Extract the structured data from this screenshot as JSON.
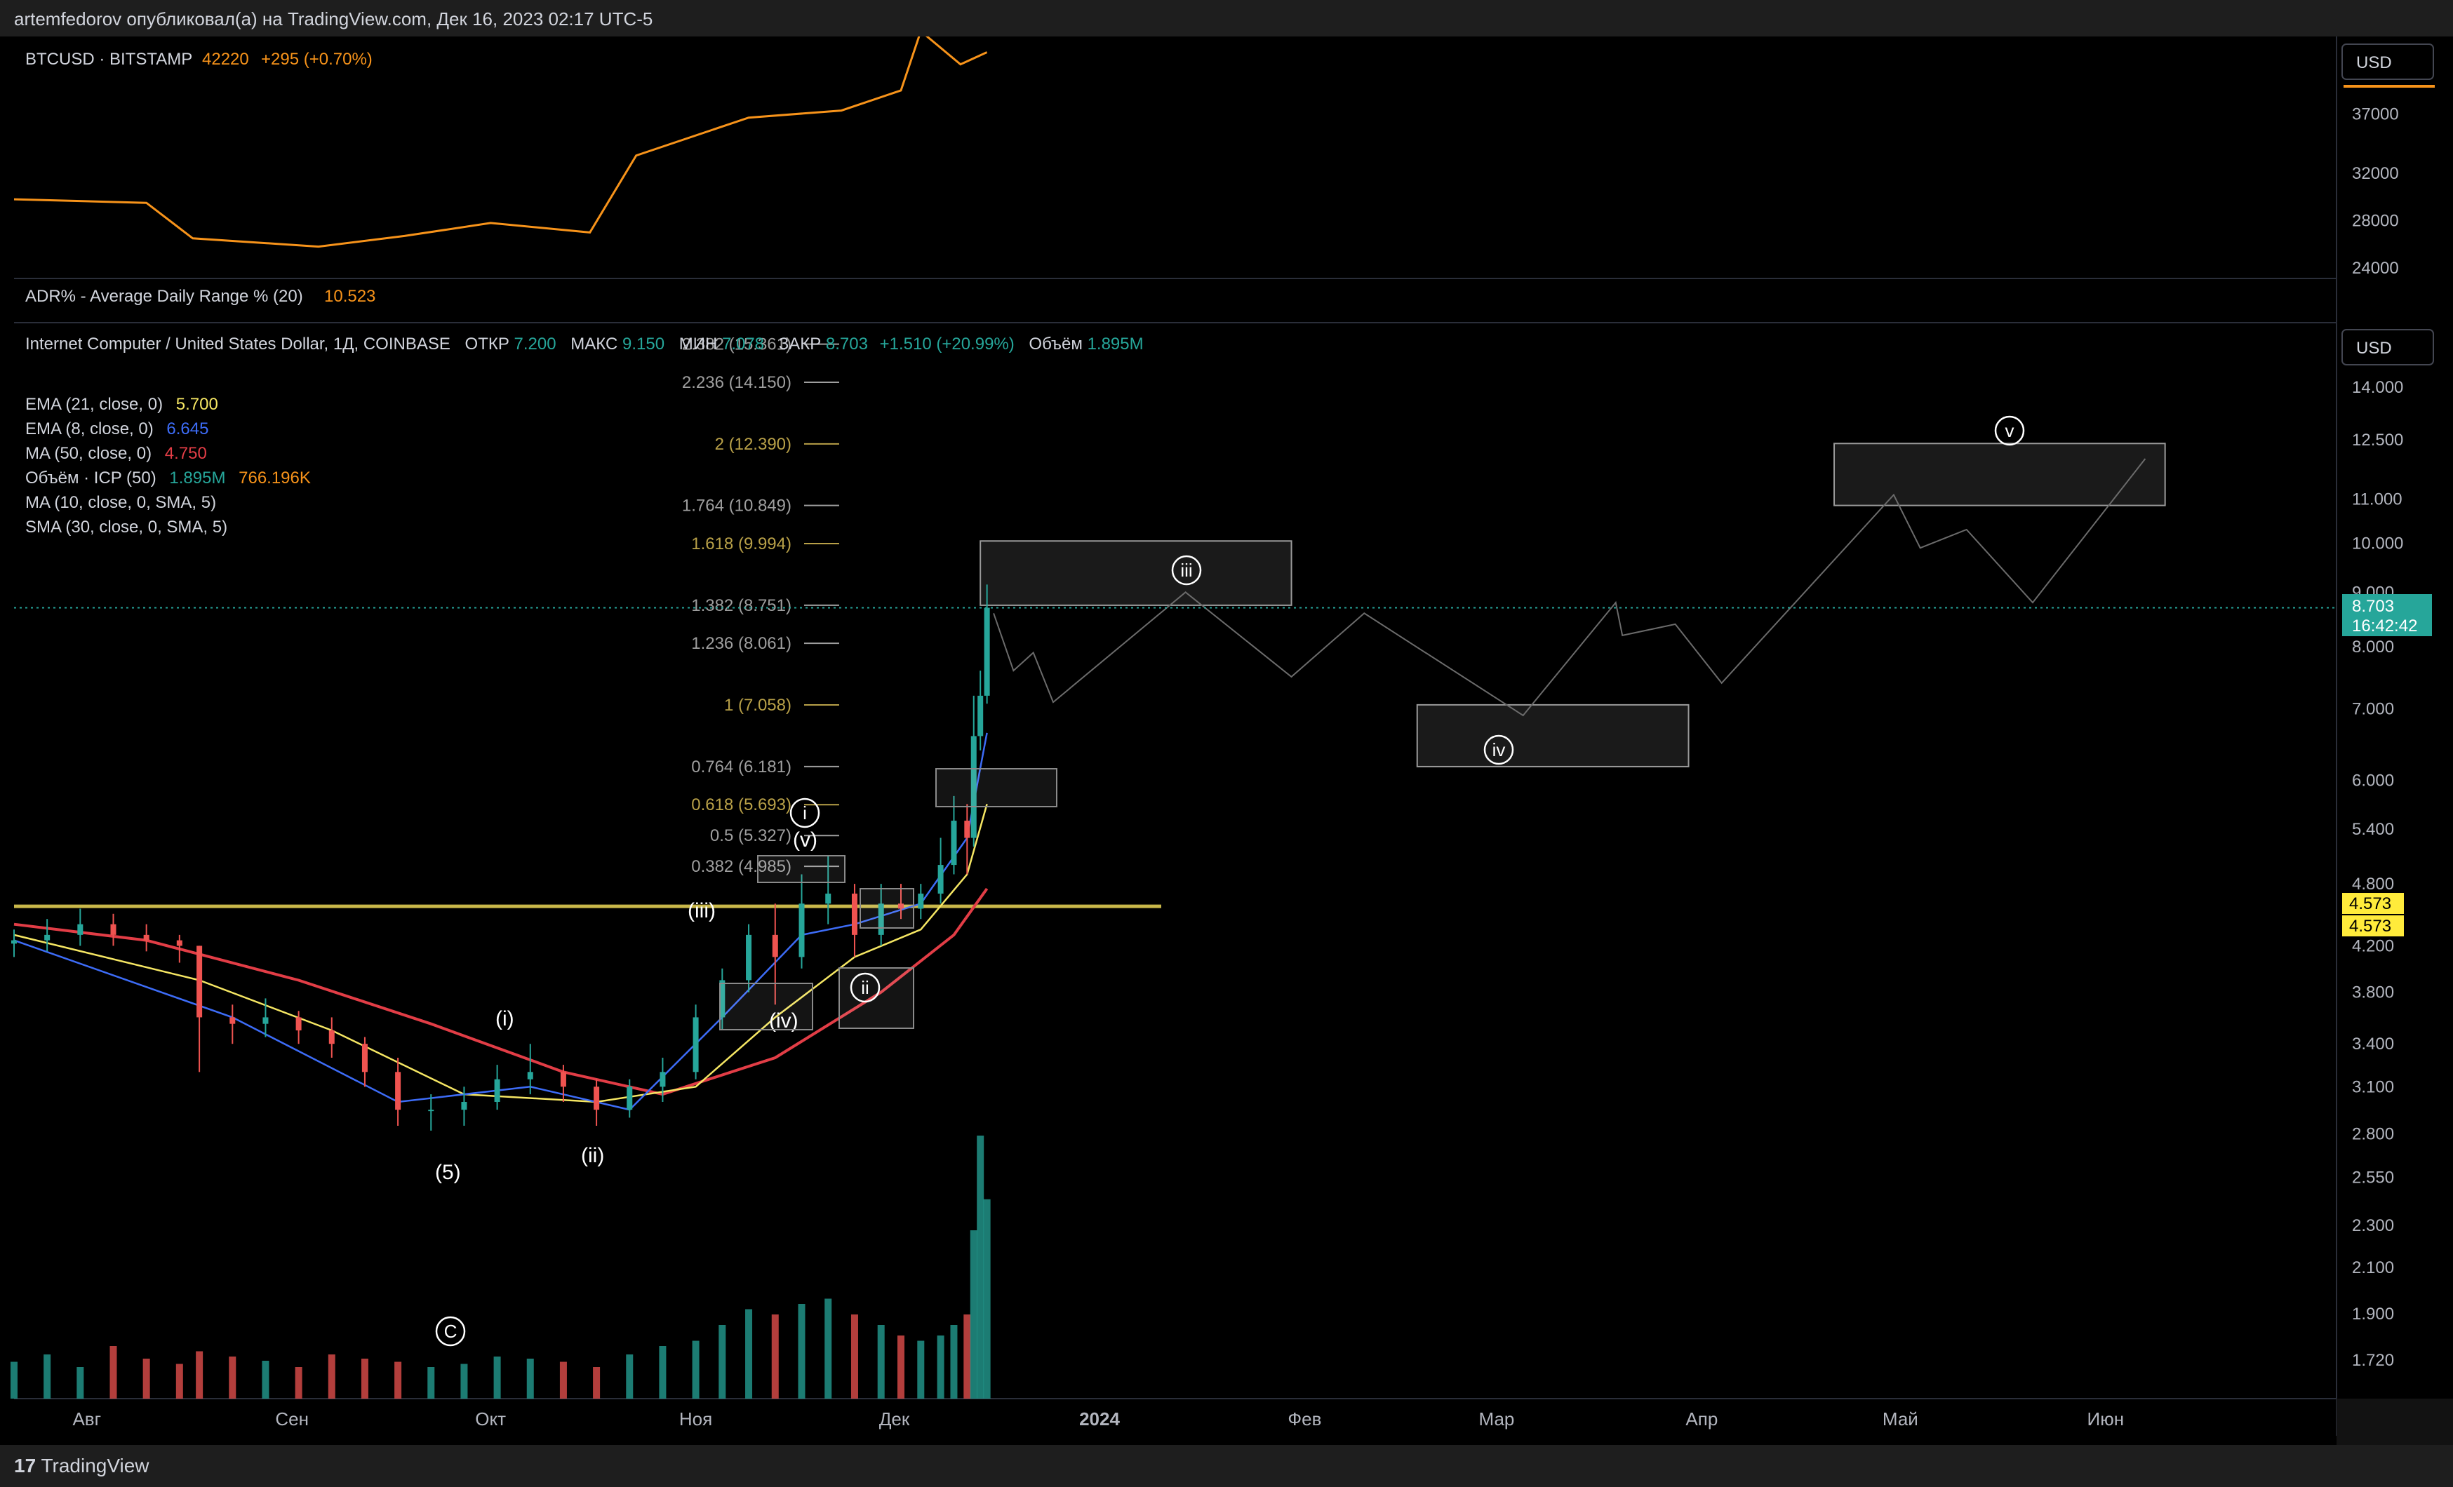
{
  "header": {
    "published": "artemfedorov опубликовал(а) на TradingView.com, Дек 16, 2023 02:17 UTC-5"
  },
  "footer": {
    "brand": "TradingView"
  },
  "colors": {
    "btc_line": "#f7931a",
    "ema21": "#f5e663",
    "ema8": "#3d6cf7",
    "ma50": "#e23d46",
    "vol_up": "#26a69a",
    "vol_down": "#ef5350",
    "fib": "#9e9e9e",
    "fib_gold": "#b8a048",
    "support": "#c9b84a",
    "up_tag": "#26a69a",
    "level_tag": "#ffeb3b"
  },
  "btc_pane": {
    "symbol": "BTCUSD · BITSTAMP",
    "price": "42220",
    "change": "+295 (+0.70%)",
    "currency": "USD",
    "ticks": [
      "37000",
      "32000",
      "28000",
      "24000"
    ]
  },
  "adr_pane": {
    "label": "ADR% - Average Daily Range % (20)",
    "value": "10.523"
  },
  "main_legend": {
    "title": "Internet Computer / United States Dollar, 1Д, COINBASE",
    "o_label": "ОТКР",
    "o": "7.200",
    "h_label": "МАКС",
    "h": "9.150",
    "l_label": "МИН",
    "l": "7.078",
    "c_label": "ЗАКР",
    "c": "8.703",
    "chg": "+1.510 (+20.99%)",
    "v_label": "Объём",
    "v": "1.895M",
    "indicators": [
      {
        "name": "EMA (21, close, 0)",
        "value": "5.700"
      },
      {
        "name": "EMA (8, close, 0)",
        "value": "6.645"
      },
      {
        "name": "MA (50, close, 0)",
        "value": "4.750"
      },
      {
        "name": "Объём · ICP (50)",
        "value": "1.895M",
        "value2": "766.196K"
      },
      {
        "name": "MA (10, close, 0, SMA, 5)",
        "value": ""
      },
      {
        "name": "SMA (30, close, 0, SMA, 5)",
        "value": ""
      }
    ],
    "currency": "USD"
  },
  "price_axis": {
    "ticks": [
      "14.000",
      "12.500",
      "11.000",
      "10.000",
      "9.000",
      "8.000",
      "7.000",
      "6.000",
      "5.400",
      "4.800",
      "4.200",
      "3.800",
      "3.400",
      "3.100",
      "2.800",
      "2.550",
      "2.300",
      "2.100",
      "1.900",
      "1.720"
    ],
    "last_price": "8.703",
    "countdown": "16:42:42",
    "level_a": "4.573",
    "level_b": "4.573"
  },
  "fib_levels": [
    {
      "label": "2.382 (15.361)",
      "price": 15.361
    },
    {
      "label": "2.236 (14.150)",
      "price": 14.15
    },
    {
      "label": "2 (12.390)",
      "price": 12.39
    },
    {
      "label": "1.764 (10.849)",
      "price": 10.849
    },
    {
      "label": "1.618 (9.994)",
      "price": 9.994
    },
    {
      "label": "1.382 (8.751)",
      "price": 8.751
    },
    {
      "label": "1.236 (8.061)",
      "price": 8.061
    },
    {
      "label": "1 (7.058)",
      "price": 7.058
    },
    {
      "label": "0.764 (6.181)",
      "price": 6.181
    },
    {
      "label": "0.618 (5.693)",
      "price": 5.693
    },
    {
      "label": "0.5 (5.327)",
      "price": 5.327
    },
    {
      "label": "0.382 (4.985)",
      "price": 4.985
    }
  ],
  "time_axis": {
    "labels": [
      {
        "text": "Авг",
        "bold": false
      },
      {
        "text": "Сен",
        "bold": false
      },
      {
        "text": "Окт",
        "bold": false
      },
      {
        "text": "Ноя",
        "bold": false
      },
      {
        "text": "Дек",
        "bold": false
      },
      {
        "text": "2024",
        "bold": true
      },
      {
        "text": "Фев",
        "bold": false
      },
      {
        "text": "Мар",
        "bold": false
      },
      {
        "text": "Апр",
        "bold": false
      },
      {
        "text": "Май",
        "bold": false
      },
      {
        "text": "Июн",
        "bold": false
      }
    ]
  },
  "wave_labels": [
    "(5)",
    "(i)",
    "(ii)",
    "(iii)",
    "(iv)",
    "(v)",
    "i",
    "ii",
    "iii",
    "iv",
    "v",
    "C"
  ],
  "chart_data": {
    "type": "candlestick",
    "symbol": "ICPUSD",
    "exchange": "COINBASE",
    "timeframe": "1D",
    "x_range": [
      "2023-07-21",
      "2024-06-20"
    ],
    "y_scale": "log",
    "last": {
      "open": 7.2,
      "high": 9.15,
      "low": 7.078,
      "close": 8.703
    },
    "candles": [
      {
        "date": "2023-07-21",
        "open": 4.22,
        "high": 4.35,
        "low": 4.1,
        "close": 4.25
      },
      {
        "date": "2023-07-26",
        "open": 4.25,
        "high": 4.45,
        "low": 4.15,
        "close": 4.3
      },
      {
        "date": "2023-07-31",
        "open": 4.3,
        "high": 4.55,
        "low": 4.2,
        "close": 4.4
      },
      {
        "date": "2023-08-05",
        "open": 4.4,
        "high": 4.5,
        "low": 4.2,
        "close": 4.3
      },
      {
        "date": "2023-08-10",
        "open": 4.3,
        "high": 4.4,
        "low": 4.15,
        "close": 4.25
      },
      {
        "date": "2023-08-15",
        "open": 4.25,
        "high": 4.3,
        "low": 4.05,
        "close": 4.2
      },
      {
        "date": "2023-08-18",
        "open": 4.2,
        "high": 4.2,
        "low": 3.2,
        "close": 3.6
      },
      {
        "date": "2023-08-23",
        "open": 3.6,
        "high": 3.7,
        "low": 3.4,
        "close": 3.55
      },
      {
        "date": "2023-08-28",
        "open": 3.55,
        "high": 3.75,
        "low": 3.45,
        "close": 3.6
      },
      {
        "date": "2023-09-02",
        "open": 3.6,
        "high": 3.65,
        "low": 3.4,
        "close": 3.5
      },
      {
        "date": "2023-09-07",
        "open": 3.5,
        "high": 3.6,
        "low": 3.3,
        "close": 3.4
      },
      {
        "date": "2023-09-12",
        "open": 3.4,
        "high": 3.45,
        "low": 3.1,
        "close": 3.2
      },
      {
        "date": "2023-09-17",
        "open": 3.2,
        "high": 3.3,
        "low": 2.85,
        "close": 2.95
      },
      {
        "date": "2023-09-22",
        "open": 2.95,
        "high": 3.05,
        "low": 2.82,
        "close": 2.95
      },
      {
        "date": "2023-09-27",
        "open": 2.95,
        "high": 3.1,
        "low": 2.85,
        "close": 3.0
      },
      {
        "date": "2023-10-02",
        "open": 3.0,
        "high": 3.25,
        "low": 2.95,
        "close": 3.15
      },
      {
        "date": "2023-10-07",
        "open": 3.15,
        "high": 3.4,
        "low": 3.05,
        "close": 3.2
      },
      {
        "date": "2023-10-12",
        "open": 3.2,
        "high": 3.25,
        "low": 3.0,
        "close": 3.1
      },
      {
        "date": "2023-10-17",
        "open": 3.1,
        "high": 3.15,
        "low": 2.85,
        "close": 2.95
      },
      {
        "date": "2023-10-22",
        "open": 2.95,
        "high": 3.15,
        "low": 2.9,
        "close": 3.1
      },
      {
        "date": "2023-10-27",
        "open": 3.1,
        "high": 3.3,
        "low": 3.0,
        "close": 3.2
      },
      {
        "date": "2023-11-01",
        "open": 3.2,
        "high": 3.7,
        "low": 3.15,
        "close": 3.6
      },
      {
        "date": "2023-11-05",
        "open": 3.6,
        "high": 4.0,
        "low": 3.5,
        "close": 3.9
      },
      {
        "date": "2023-11-09",
        "open": 3.9,
        "high": 4.4,
        "low": 3.8,
        "close": 4.3
      },
      {
        "date": "2023-11-13",
        "open": 4.3,
        "high": 4.6,
        "low": 3.7,
        "close": 4.1
      },
      {
        "date": "2023-11-17",
        "open": 4.1,
        "high": 4.9,
        "low": 4.0,
        "close": 4.6
      },
      {
        "date": "2023-11-21",
        "open": 4.6,
        "high": 5.1,
        "low": 4.4,
        "close": 4.7
      },
      {
        "date": "2023-11-25",
        "open": 4.7,
        "high": 4.8,
        "low": 4.1,
        "close": 4.3
      },
      {
        "date": "2023-11-29",
        "open": 4.3,
        "high": 4.8,
        "low": 4.2,
        "close": 4.6
      },
      {
        "date": "2023-12-02",
        "open": 4.6,
        "high": 4.8,
        "low": 4.45,
        "close": 4.55
      },
      {
        "date": "2023-12-05",
        "open": 4.55,
        "high": 4.8,
        "low": 4.45,
        "close": 4.7
      },
      {
        "date": "2023-12-08",
        "open": 4.7,
        "high": 5.3,
        "low": 4.6,
        "close": 5.0
      },
      {
        "date": "2023-12-10",
        "open": 5.0,
        "high": 5.8,
        "low": 4.9,
        "close": 5.5
      },
      {
        "date": "2023-12-12",
        "open": 5.5,
        "high": 5.7,
        "low": 4.9,
        "close": 5.3
      },
      {
        "date": "2023-12-13",
        "open": 5.3,
        "high": 7.2,
        "low": 5.2,
        "close": 6.6
      },
      {
        "date": "2023-12-14",
        "open": 6.6,
        "high": 7.6,
        "low": 6.4,
        "close": 7.2
      },
      {
        "date": "2023-12-15",
        "open": 7.2,
        "high": 9.15,
        "low": 7.078,
        "close": 8.703
      }
    ],
    "ema21": [
      [
        "2023-07-21",
        4.3
      ],
      [
        "2023-08-18",
        3.9
      ],
      [
        "2023-09-07",
        3.5
      ],
      [
        "2023-09-27",
        3.05
      ],
      [
        "2023-10-17",
        3.0
      ],
      [
        "2023-11-01",
        3.1
      ],
      [
        "2023-11-13",
        3.6
      ],
      [
        "2023-11-25",
        4.1
      ],
      [
        "2023-12-05",
        4.35
      ],
      [
        "2023-12-12",
        4.9
      ],
      [
        "2023-12-15",
        5.7
      ]
    ],
    "ema8": [
      [
        "2023-07-21",
        4.25
      ],
      [
        "2023-08-23",
        3.6
      ],
      [
        "2023-09-17",
        3.0
      ],
      [
        "2023-10-07",
        3.1
      ],
      [
        "2023-10-22",
        2.95
      ],
      [
        "2023-11-05",
        3.6
      ],
      [
        "2023-11-17",
        4.3
      ],
      [
        "2023-11-25",
        4.4
      ],
      [
        "2023-12-05",
        4.6
      ],
      [
        "2023-12-12",
        5.3
      ],
      [
        "2023-12-15",
        6.645
      ]
    ],
    "ma50": [
      [
        "2023-07-21",
        4.4
      ],
      [
        "2023-08-10",
        4.25
      ],
      [
        "2023-09-02",
        3.9
      ],
      [
        "2023-09-22",
        3.55
      ],
      [
        "2023-10-12",
        3.2
      ],
      [
        "2023-10-27",
        3.05
      ],
      [
        "2023-11-13",
        3.3
      ],
      [
        "2023-11-29",
        3.8
      ],
      [
        "2023-12-10",
        4.3
      ],
      [
        "2023-12-15",
        4.75
      ]
    ],
    "projection": [
      [
        "2023-12-16",
        8.6
      ],
      [
        "2023-12-19",
        7.6
      ],
      [
        "2023-12-22",
        7.9
      ],
      [
        "2023-12-25",
        7.1
      ],
      [
        "2024-01-14",
        9.0
      ],
      [
        "2024-01-30",
        7.5
      ],
      [
        "2024-02-10",
        8.6
      ],
      [
        "2024-03-05",
        6.9
      ],
      [
        "2024-03-19",
        8.8
      ],
      [
        "2024-03-20",
        8.2
      ],
      [
        "2024-03-28",
        8.4
      ],
      [
        "2024-04-04",
        7.4
      ],
      [
        "2024-04-30",
        11.1
      ],
      [
        "2024-05-04",
        9.9
      ],
      [
        "2024-05-11",
        10.3
      ],
      [
        "2024-05-21",
        8.8
      ],
      [
        "2024-06-07",
        12.0
      ]
    ],
    "zones": [
      {
        "label": "iii",
        "from": "2023-12-14",
        "to": "2024-01-30",
        "low": 8.75,
        "high": 10.05
      },
      {
        "label": "iv",
        "from": "2024-02-18",
        "to": "2024-03-30",
        "low": 6.18,
        "high": 7.06
      },
      {
        "label": "v",
        "from": "2024-04-21",
        "to": "2024-06-10",
        "low": 10.85,
        "high": 12.4
      }
    ],
    "support_level": 4.573,
    "volume_millions": [
      0.35,
      0.42,
      0.3,
      0.5,
      0.38,
      0.33,
      0.45,
      0.4,
      0.36,
      0.3,
      0.42,
      0.38,
      0.35,
      0.3,
      0.33,
      0.4,
      0.38,
      0.35,
      0.3,
      0.42,
      0.5,
      0.55,
      0.7,
      0.85,
      0.8,
      0.9,
      0.95,
      0.8,
      0.7,
      0.6,
      0.55,
      0.6,
      0.7,
      0.8,
      1.6,
      2.5,
      1.895
    ],
    "btc_close": [
      [
        "2023-07-21",
        29800
      ],
      [
        "2023-08-10",
        29500
      ],
      [
        "2023-08-17",
        26500
      ],
      [
        "2023-09-05",
        25800
      ],
      [
        "2023-09-18",
        26700
      ],
      [
        "2023-10-01",
        27800
      ],
      [
        "2023-10-16",
        27000
      ],
      [
        "2023-10-23",
        33500
      ],
      [
        "2023-11-09",
        36700
      ],
      [
        "2023-11-23",
        37300
      ],
      [
        "2023-12-02",
        39000
      ],
      [
        "2023-12-05",
        44000
      ],
      [
        "2023-12-11",
        41200
      ],
      [
        "2023-12-15",
        42220
      ]
    ]
  }
}
